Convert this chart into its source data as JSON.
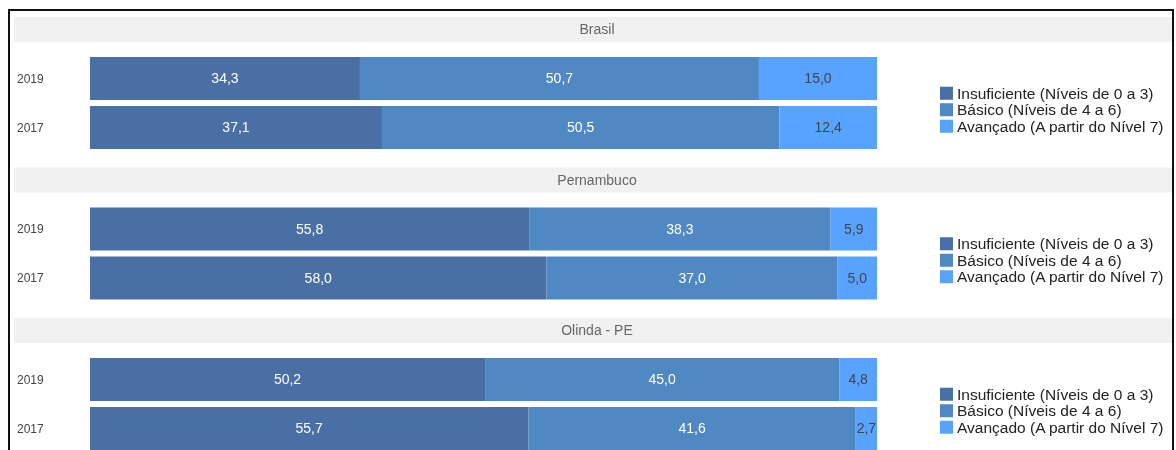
{
  "chart_data": [
    {
      "type": "bar",
      "title": "Brasil",
      "orientation": "horizontal",
      "stacked": true,
      "legend": "right",
      "categories": [
        "2019",
        "2017"
      ],
      "series": [
        {
          "name": "Insuficiente (Níveis de 0 a 3)",
          "color": "#4a6fa5",
          "values": [
            34.3,
            37.1
          ],
          "value_labels": [
            "34,3",
            "37,1"
          ]
        },
        {
          "name": "Básico (Níveis de 4 a 6)",
          "color": "#5088c4",
          "values": [
            50.7,
            50.5
          ],
          "value_labels": [
            "50,7",
            "50,5"
          ]
        },
        {
          "name": "Avançado (A partir do Nível 7)",
          "color": "#57a3ff",
          "values": [
            15.0,
            12.4
          ],
          "value_labels": [
            "15,0",
            "12,4"
          ]
        }
      ]
    },
    {
      "type": "bar",
      "title": "Pernambuco",
      "orientation": "horizontal",
      "stacked": true,
      "legend": "right",
      "categories": [
        "2019",
        "2017"
      ],
      "series": [
        {
          "name": "Insuficiente (Níveis de 0 a 3)",
          "color": "#4a6fa5",
          "values": [
            55.8,
            58.0
          ],
          "value_labels": [
            "55,8",
            "58,0"
          ]
        },
        {
          "name": "Básico (Níveis de 4 a 6)",
          "color": "#5088c4",
          "values": [
            38.3,
            37.0
          ],
          "value_labels": [
            "38,3",
            "37,0"
          ]
        },
        {
          "name": "Avançado (A partir do Nível 7)",
          "color": "#57a3ff",
          "values": [
            5.9,
            5.0
          ],
          "value_labels": [
            "5,9",
            "5,0"
          ]
        }
      ]
    },
    {
      "type": "bar",
      "title": "Olinda - PE",
      "orientation": "horizontal",
      "stacked": true,
      "legend": "right",
      "categories": [
        "2019",
        "2017"
      ],
      "series": [
        {
          "name": "Insuficiente (Níveis de 0 a 3)",
          "color": "#4a6fa5",
          "values": [
            50.2,
            55.7
          ],
          "value_labels": [
            "50,2",
            "55,7"
          ]
        },
        {
          "name": "Básico (Níveis de 4 a 6)",
          "color": "#5088c4",
          "values": [
            45.0,
            41.6
          ],
          "value_labels": [
            "45,0",
            "41,6"
          ]
        },
        {
          "name": "Avançado (A partir do Nível 7)",
          "color": "#57a3ff",
          "values": [
            4.8,
            2.7
          ],
          "value_labels": [
            "4,8",
            "2,7"
          ]
        }
      ]
    }
  ]
}
